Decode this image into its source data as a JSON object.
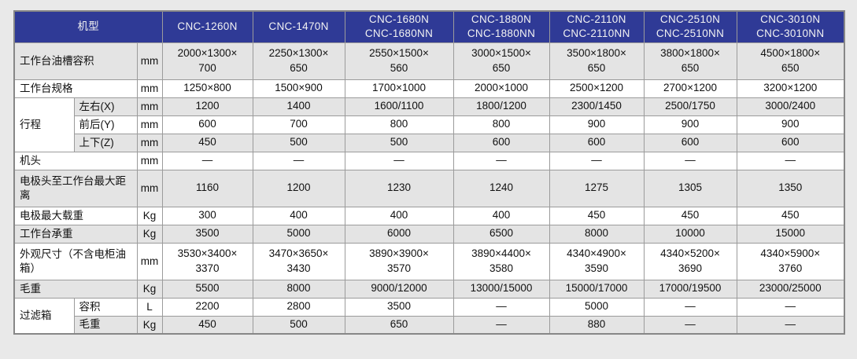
{
  "colors": {
    "header_bg": "#2f3a96",
    "header_text": "#f2f2f2",
    "row_gray": "#e4e4e4",
    "row_white": "#ffffff",
    "grid_line": "#9b9b9b",
    "outer_border": "#878787",
    "page_bg": "#e9e9e9",
    "text": "#111111"
  },
  "table": {
    "header": {
      "model_label": "机型",
      "models": [
        "CNC-1260N",
        "CNC-1470N",
        "CNC-1680N\nCNC-1680NN",
        "CNC-1880N\nCNC-1880NN",
        "CNC-2110N\nCNC-2110NN",
        "CNC-2510N\nCNC-2510NN",
        "CNC-3010N\nCNC-3010NN"
      ]
    },
    "rows": [
      {
        "label": "工作台油槽容积",
        "unit": "mm",
        "shade": "gray",
        "tall": true,
        "values": [
          "2000×1300×\n700",
          "2250×1300×\n650",
          "2550×1500×\n560",
          "3000×1500×\n650",
          "3500×1800×\n650",
          "3800×1800×\n650",
          "4500×1800×\n650"
        ]
      },
      {
        "label": "工作台规格",
        "unit": "mm",
        "shade": "white",
        "values": [
          "1250×800",
          "1500×900",
          "1700×1000",
          "2000×1000",
          "2500×1200",
          "2700×1200",
          "3200×1200"
        ]
      },
      {
        "group": "行程",
        "group_rowspan": 3,
        "sublabel": "左右(X)",
        "unit": "mm",
        "shade": "gray",
        "values": [
          "1200",
          "1400",
          "1600/1100",
          "1800/1200",
          "2300/1450",
          "2500/1750",
          "3000/2400"
        ]
      },
      {
        "sublabel": "前后(Y)",
        "unit": "mm",
        "shade": "white",
        "values": [
          "600",
          "700",
          "800",
          "800",
          "900",
          "900",
          "900"
        ]
      },
      {
        "sublabel": "上下(Z)",
        "unit": "mm",
        "shade": "gray",
        "values": [
          "450",
          "500",
          "500",
          "600",
          "600",
          "600",
          "600"
        ]
      },
      {
        "label": "机头",
        "unit": "mm",
        "shade": "white",
        "values": [
          "—",
          "—",
          "—",
          "—",
          "—",
          "—",
          "—"
        ]
      },
      {
        "label": "电极头至工作台最大距离",
        "unit": "mm",
        "shade": "gray",
        "tall": true,
        "values": [
          "1160",
          "1200",
          "1230",
          "1240",
          "1275",
          "1305",
          "1350"
        ]
      },
      {
        "label": "电极最大载重",
        "unit": "Kg",
        "shade": "white",
        "values": [
          "300",
          "400",
          "400",
          "400",
          "450",
          "450",
          "450"
        ]
      },
      {
        "label": "工作台承重",
        "unit": "Kg",
        "shade": "gray",
        "values": [
          "3500",
          "5000",
          "6000",
          "6500",
          "8000",
          "10000",
          "15000"
        ]
      },
      {
        "label": "外观尺寸（不含电柜油箱）",
        "unit": "mm",
        "shade": "white",
        "tall": true,
        "values": [
          "3530×3400×\n3370",
          "3470×3650×\n3430",
          "3890×3900×\n3570",
          "3890×4400×\n3580",
          "4340×4900×\n3590",
          "4340×5200×\n3690",
          "4340×5900×\n3760"
        ]
      },
      {
        "label": "毛重",
        "unit": "Kg",
        "shade": "gray",
        "values": [
          "5500",
          "8000",
          "9000/12000",
          "13000/15000",
          "15000/17000",
          "17000/19500",
          "23000/25000"
        ]
      },
      {
        "group": "过滤箱",
        "group_rowspan": 2,
        "sublabel": "容积",
        "unit": "L",
        "shade": "white",
        "values": [
          "2200",
          "2800",
          "3500",
          "—",
          "5000",
          "—",
          "—"
        ]
      },
      {
        "sublabel": "毛重",
        "unit": "Kg",
        "shade": "gray",
        "values": [
          "450",
          "500",
          "650",
          "—",
          "880",
          "—",
          "—"
        ]
      }
    ]
  }
}
